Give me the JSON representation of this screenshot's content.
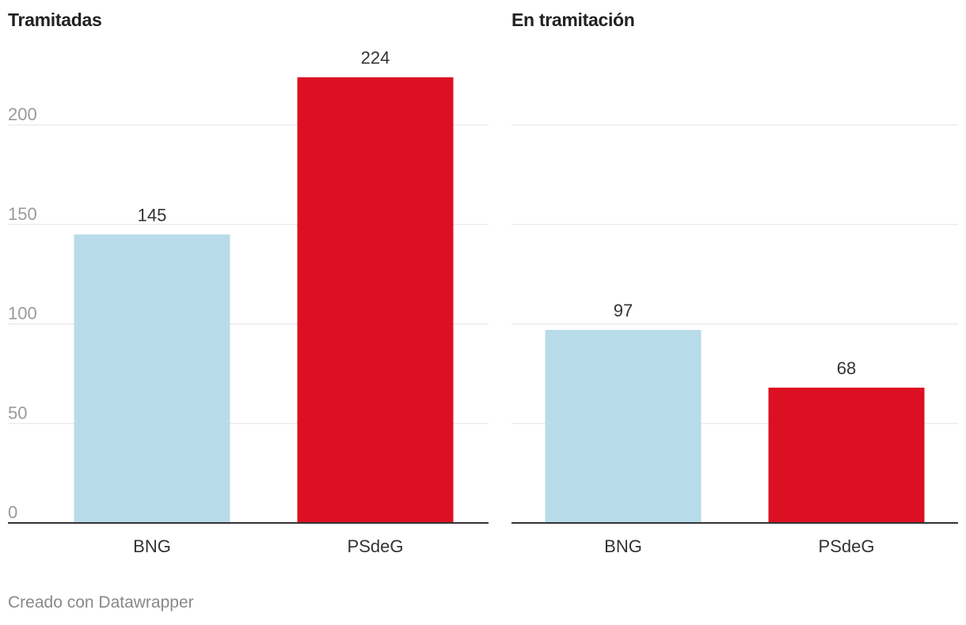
{
  "chart_data": [
    {
      "type": "bar",
      "title": "Tramitadas",
      "categories": [
        "BNG",
        "PSdeG"
      ],
      "values": [
        145,
        224
      ],
      "colors": [
        "#b8dbea",
        "#dc1022"
      ],
      "ylim": [
        0,
        224
      ],
      "yticks": [
        0,
        50,
        100,
        150,
        200
      ],
      "ytick_labels_shown": true,
      "grid": true,
      "data_labels": true
    },
    {
      "type": "bar",
      "title": "En tramitación",
      "categories": [
        "BNG",
        "PSdeG"
      ],
      "values": [
        97,
        68
      ],
      "colors": [
        "#b8dbea",
        "#dc1022"
      ],
      "ylim": [
        0,
        224
      ],
      "yticks": [
        0,
        50,
        100,
        150,
        200
      ],
      "ytick_labels_shown": false,
      "grid": true,
      "data_labels": true
    }
  ],
  "footer": "Creado con Datawrapper"
}
